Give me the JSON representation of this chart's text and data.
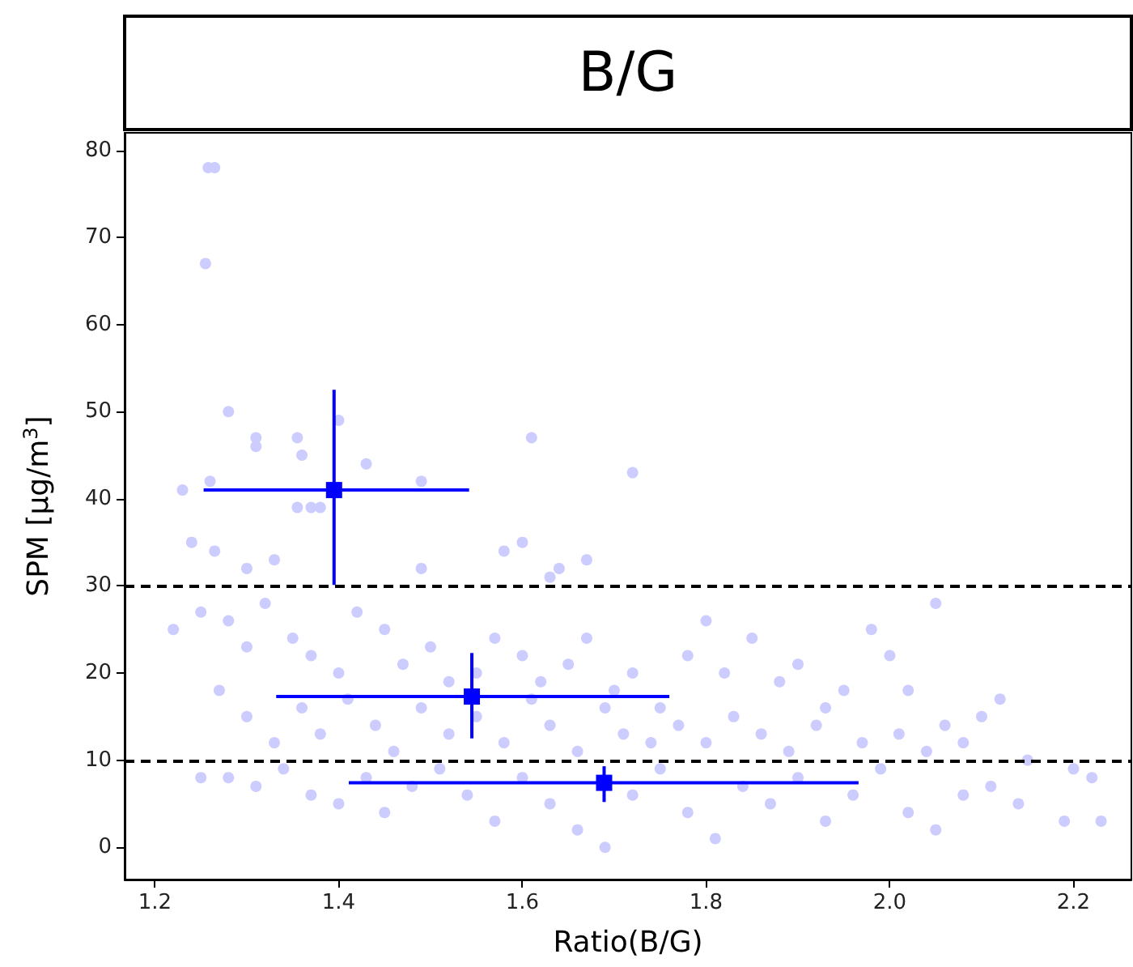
{
  "chart_data": {
    "type": "scatter",
    "title": "B/G",
    "xlabel": "Ratio(B/G)",
    "ylabel": "SPM [μg/m$^{3}$]",
    "xlim": [
      1.167,
      2.263
    ],
    "ylim": [
      -3.7,
      82
    ],
    "xticks": [
      1.2,
      1.4,
      1.6,
      1.8,
      {
        "value": 2,
        "label": "2.0"
      },
      2.2
    ],
    "yticks": [
      0,
      10,
      20,
      30,
      40,
      50,
      60,
      70,
      80
    ],
    "marker": "circle",
    "series": [
      {
        "color": "#ccccff",
        "x": [
          1.258,
          1.265,
          1.255,
          1.28,
          1.31,
          1.31,
          1.355,
          1.36,
          1.43,
          1.4,
          1.61,
          1.49,
          1.26,
          1.23,
          1.72,
          1.355,
          1.37,
          1.38,
          1.24,
          1.265,
          1.33,
          1.3,
          1.49,
          1.6,
          1.64,
          1.67,
          1.58,
          1.63,
          1.22,
          1.25,
          1.28,
          1.3,
          1.32,
          1.35,
          1.37,
          1.4,
          1.42,
          1.45,
          1.47,
          1.5,
          1.52,
          1.55,
          1.57,
          1.6,
          1.62,
          1.65,
          1.67,
          1.7,
          1.72,
          1.75,
          1.78,
          1.8,
          1.82,
          1.85,
          1.88,
          1.9,
          1.93,
          1.95,
          1.98,
          2.0,
          2.02,
          2.05,
          2.08,
          2.1,
          2.12,
          2.15,
          2.2,
          1.27,
          1.3,
          1.33,
          1.36,
          1.38,
          1.41,
          1.44,
          1.46,
          1.49,
          1.52,
          1.55,
          1.58,
          1.61,
          1.63,
          1.66,
          1.69,
          1.71,
          1.74,
          1.77,
          1.8,
          1.83,
          1.86,
          1.89,
          1.92,
          1.97,
          2.01,
          2.04,
          2.06,
          1.28,
          1.31,
          1.34,
          1.37,
          1.4,
          1.43,
          1.45,
          1.48,
          1.51,
          1.54,
          1.57,
          1.6,
          1.63,
          1.66,
          1.69,
          1.72,
          1.75,
          1.78,
          1.81,
          1.84,
          1.87,
          1.9,
          1.93,
          1.96,
          1.99,
          2.02,
          2.05,
          2.08,
          2.11,
          2.14,
          2.19,
          2.23,
          2.22,
          1.25
        ],
        "values": [
          78,
          78,
          67,
          50,
          47,
          46,
          47,
          45,
          44,
          49,
          47,
          42,
          42,
          41,
          43,
          39,
          39,
          39,
          35,
          34,
          33,
          32,
          32,
          35,
          32,
          33,
          34,
          31,
          25,
          27,
          26,
          23,
          28,
          24,
          22,
          20,
          27,
          25,
          21,
          23,
          19,
          20,
          24,
          22,
          19,
          21,
          24,
          18,
          20,
          16,
          22,
          26,
          20,
          24,
          19,
          21,
          16,
          18,
          25,
          22,
          18,
          28,
          12,
          15,
          17,
          10,
          9,
          18,
          15,
          12,
          16,
          13,
          17,
          14,
          11,
          16,
          13,
          15,
          12,
          17,
          14,
          11,
          16,
          13,
          12,
          14,
          12,
          15,
          13,
          11,
          14,
          12,
          13,
          11,
          14,
          8,
          7,
          9,
          6,
          5,
          8,
          4,
          7,
          9,
          6,
          3,
          8,
          5,
          2,
          0,
          6,
          9,
          4,
          1,
          7,
          5,
          8,
          3,
          6,
          9,
          4,
          2,
          6,
          7,
          5,
          3,
          3,
          8,
          8
        ]
      },
      {
        "color": "#0000ff",
        "marker": "square",
        "x": [
          1.395,
          1.545,
          1.689
        ],
        "values": [
          41,
          17.3,
          7.4
        ],
        "errors": [
          [
            30.1,
            52.5
          ],
          [
            12.5,
            22.3
          ],
          [
            5.2,
            9.3
          ]
        ],
        "xerrors": [
          [
            1.253,
            1.542
          ],
          [
            1.332,
            1.76
          ],
          [
            1.411,
            1.966
          ]
        ]
      }
    ],
    "ref_lines": [
      {
        "axis": "y",
        "value": 30,
        "color": "#000000",
        "line_style": "dashed"
      },
      {
        "axis": "y",
        "value": 10,
        "color": "#000000",
        "line_style": "dashed"
      }
    ]
  }
}
